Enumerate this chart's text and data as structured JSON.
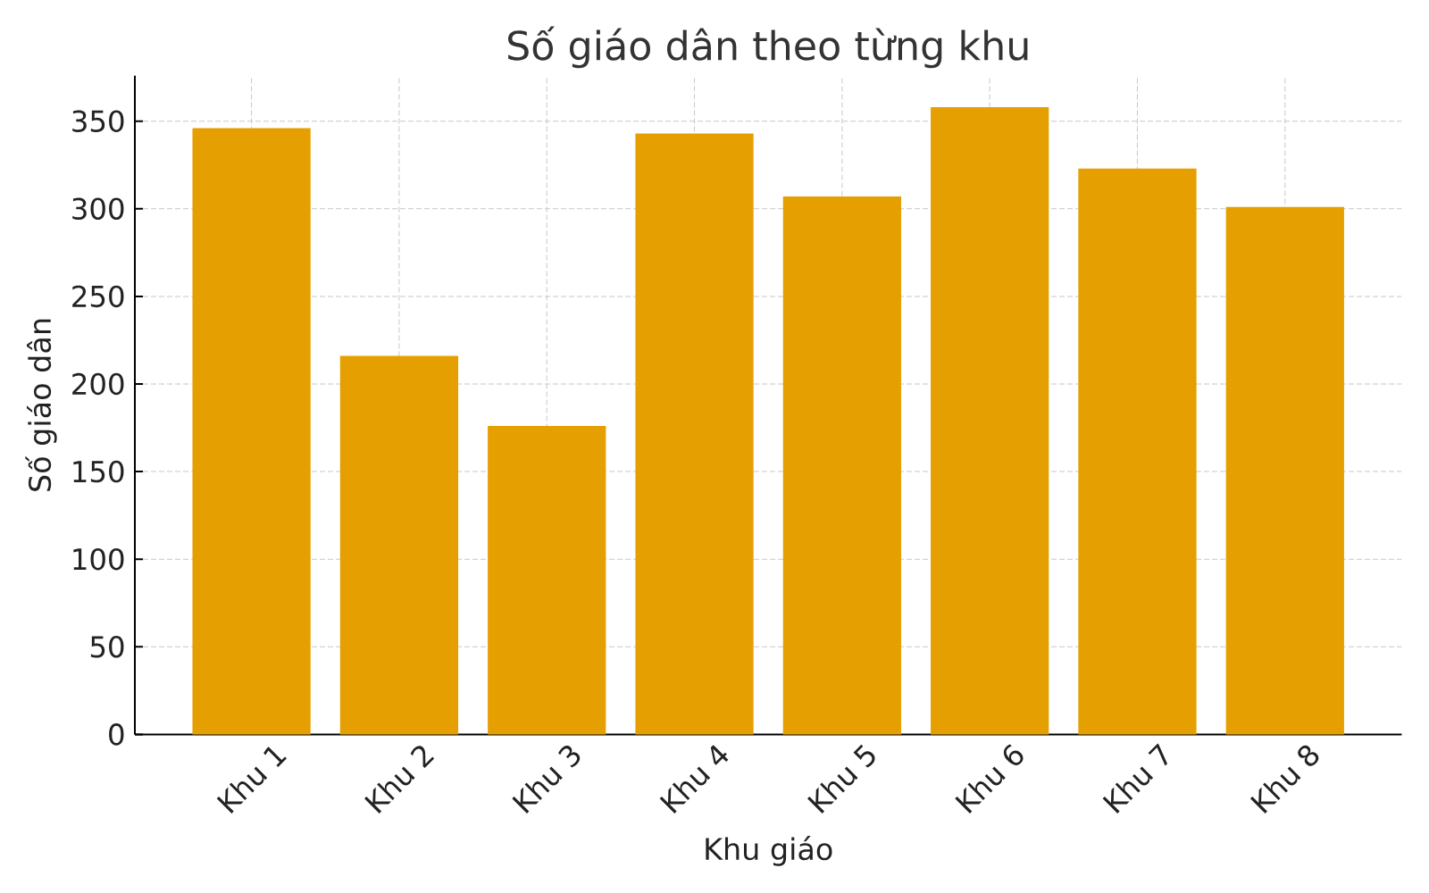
{
  "chart_data": {
    "type": "bar",
    "title": "Số giáo dân theo từng khu",
    "xlabel": "Khu giáo",
    "ylabel": "Số giáo dân",
    "categories": [
      "Khu 1",
      "Khu 2",
      "Khu 3",
      "Khu 4",
      "Khu 5",
      "Khu 6",
      "Khu 7",
      "Khu 8"
    ],
    "values": [
      346,
      216,
      176,
      343,
      307,
      358,
      323,
      301
    ],
    "color": "#e69f00",
    "ylim": [
      0,
      376
    ],
    "yticks": [
      0,
      50,
      100,
      150,
      200,
      250,
      300,
      350
    ],
    "grid": true
  }
}
